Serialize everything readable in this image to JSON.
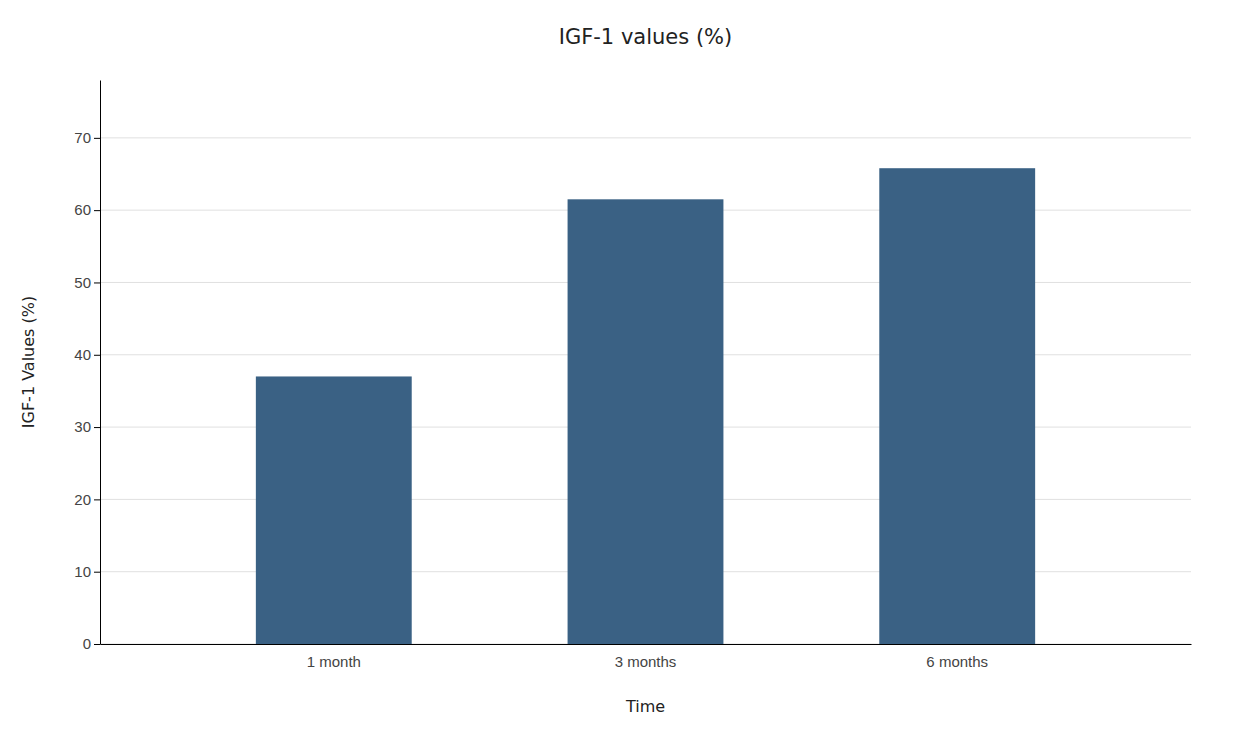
{
  "chart_data": {
    "type": "bar",
    "title": "IGF-1 values (%)",
    "xlabel": "Time",
    "ylabel": "IGF-1 Values (%)",
    "categories": [
      "1 month",
      "3 months",
      "6 months"
    ],
    "values": [
      37,
      61.5,
      65.8
    ],
    "color": "#3a6184",
    "ylim": [
      0,
      78
    ],
    "yticks": [
      0,
      10,
      20,
      30,
      40,
      50,
      60,
      70
    ],
    "grid": true
  }
}
